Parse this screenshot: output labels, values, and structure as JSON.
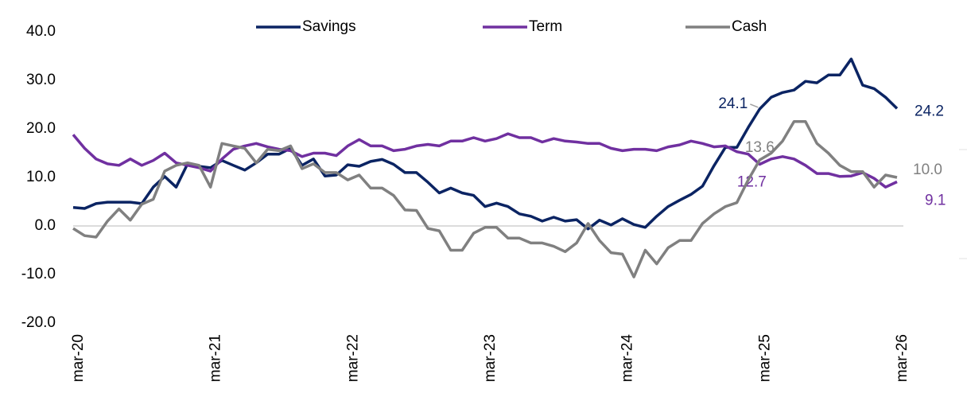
{
  "chart_data": {
    "type": "line",
    "categories": [
      "mar-20",
      null,
      null,
      null,
      null,
      null,
      null,
      null,
      null,
      null,
      null,
      null,
      "mar-21",
      null,
      null,
      null,
      null,
      null,
      null,
      null,
      null,
      null,
      null,
      null,
      "mar-22",
      null,
      null,
      null,
      null,
      null,
      null,
      null,
      null,
      null,
      null,
      null,
      "mar-23",
      null,
      null,
      null,
      null,
      null,
      null,
      null,
      null,
      null,
      null,
      null,
      "mar-24",
      null,
      null,
      null,
      null,
      null,
      null,
      null,
      null,
      null,
      null,
      null,
      "mar-25",
      null,
      null,
      null,
      null,
      null,
      null,
      null,
      null,
      null,
      null,
      null,
      "mar-26"
    ],
    "series": [
      {
        "name": "Savings",
        "color": "#0b2463",
        "values": [
          3.8,
          3.6,
          4.6,
          4.9,
          4.9,
          4.9,
          4.6,
          8.0,
          10.2,
          8.0,
          12.8,
          12.3,
          12.0,
          13.5,
          12.5,
          11.5,
          13.0,
          14.8,
          14.8,
          16.0,
          12.5,
          13.8,
          10.3,
          10.5,
          12.6,
          12.3,
          13.3,
          13.7,
          12.7,
          11.0,
          11.0,
          9.0,
          6.8,
          7.8,
          6.8,
          6.3,
          4.0,
          4.7,
          4.0,
          2.5,
          2.0,
          1.0,
          1.8,
          1.0,
          1.3,
          -0.6,
          1.2,
          0.2,
          1.5,
          0.3,
          -0.3,
          2.0,
          4.0,
          5.3,
          6.5,
          8.2,
          12.4,
          16.2,
          16.2,
          20.3,
          24.1,
          26.5,
          27.5,
          28.0,
          29.8,
          29.5,
          31.1,
          31.1,
          34.4,
          29.0,
          28.3,
          26.5,
          24.2
        ],
        "value_labels": [
          null,
          null,
          null,
          null,
          null,
          null,
          null,
          null,
          null,
          null,
          null,
          null,
          null,
          null,
          null,
          null,
          null,
          null,
          null,
          null,
          null,
          null,
          null,
          null,
          null,
          null,
          null,
          null,
          null,
          null,
          null,
          null,
          null,
          null,
          null,
          null,
          null,
          null,
          null,
          null,
          null,
          null,
          null,
          null,
          null,
          null,
          null,
          null,
          null,
          null,
          null,
          null,
          null,
          null,
          null,
          null,
          null,
          null,
          null,
          null,
          "24.1",
          null,
          null,
          null,
          null,
          null,
          null,
          null,
          null,
          null,
          null,
          null,
          "24.2"
        ]
      },
      {
        "name": "Term",
        "color": "#7030a0",
        "values": [
          18.8,
          16.0,
          13.8,
          12.8,
          12.5,
          13.8,
          12.5,
          13.5,
          15.0,
          13.0,
          12.5,
          12.0,
          11.3,
          13.8,
          15.8,
          16.5,
          17.0,
          16.3,
          15.8,
          15.5,
          14.3,
          15.0,
          15.0,
          14.5,
          16.5,
          17.8,
          16.5,
          16.5,
          15.5,
          15.8,
          16.5,
          16.8,
          16.5,
          17.5,
          17.5,
          18.2,
          17.5,
          18.0,
          19.0,
          18.2,
          18.2,
          17.3,
          18.0,
          17.5,
          17.3,
          17.0,
          17.0,
          16.0,
          15.5,
          15.8,
          15.8,
          15.5,
          16.3,
          16.7,
          17.5,
          17.0,
          16.3,
          16.5,
          15.3,
          14.8,
          12.7,
          13.8,
          14.3,
          13.8,
          12.5,
          10.8,
          10.8,
          10.2,
          10.3,
          11.0,
          9.8,
          8.0,
          9.1
        ],
        "value_labels": [
          null,
          null,
          null,
          null,
          null,
          null,
          null,
          null,
          null,
          null,
          null,
          null,
          null,
          null,
          null,
          null,
          null,
          null,
          null,
          null,
          null,
          null,
          null,
          null,
          null,
          null,
          null,
          null,
          null,
          null,
          null,
          null,
          null,
          null,
          null,
          null,
          null,
          null,
          null,
          null,
          null,
          null,
          null,
          null,
          null,
          null,
          null,
          null,
          null,
          null,
          null,
          null,
          null,
          null,
          null,
          null,
          null,
          null,
          null,
          null,
          "12.7",
          null,
          null,
          null,
          null,
          null,
          null,
          null,
          null,
          null,
          null,
          null,
          "9.1"
        ]
      },
      {
        "name": "Cash",
        "color": "#808080",
        "values": [
          -0.5,
          -2.0,
          -2.3,
          1.0,
          3.5,
          1.2,
          4.5,
          5.5,
          11.3,
          12.5,
          13.0,
          12.5,
          8.0,
          17.0,
          16.5,
          16.0,
          13.0,
          15.8,
          15.5,
          16.5,
          11.8,
          12.8,
          11.0,
          11.0,
          9.5,
          10.5,
          7.8,
          7.8,
          6.3,
          3.3,
          3.2,
          -0.5,
          -1.0,
          -5.0,
          -5.0,
          -1.5,
          -0.3,
          -0.3,
          -2.5,
          -2.5,
          -3.5,
          -3.5,
          -4.2,
          -5.3,
          -3.5,
          0.5,
          -3.0,
          -5.5,
          -5.8,
          -10.5,
          -5.0,
          -7.8,
          -4.5,
          -3.0,
          -3.0,
          0.5,
          2.5,
          4.0,
          4.8,
          9.5,
          13.6,
          15.0,
          17.5,
          21.5,
          21.5,
          17.0,
          15.0,
          12.5,
          11.2,
          11.2,
          8.0,
          10.5,
          10.0
        ],
        "value_labels": [
          null,
          null,
          null,
          null,
          null,
          null,
          null,
          null,
          null,
          null,
          null,
          null,
          null,
          null,
          null,
          null,
          null,
          null,
          null,
          null,
          null,
          null,
          null,
          null,
          null,
          null,
          null,
          null,
          null,
          null,
          null,
          null,
          null,
          null,
          null,
          null,
          null,
          null,
          null,
          null,
          null,
          null,
          null,
          null,
          null,
          null,
          null,
          null,
          null,
          null,
          null,
          null,
          null,
          null,
          null,
          null,
          null,
          null,
          null,
          null,
          "13.6",
          null,
          null,
          null,
          null,
          null,
          null,
          null,
          null,
          null,
          null,
          null,
          "10.0"
        ]
      }
    ],
    "ylim": [
      -20,
      40
    ],
    "yticks": [
      {
        "value": -20,
        "label": "-20.0"
      },
      {
        "value": -10,
        "label": "-10.0"
      },
      {
        "value": 0,
        "label": "0.0"
      },
      {
        "value": 10,
        "label": "10.0"
      },
      {
        "value": 20,
        "label": "20.0"
      },
      {
        "value": 30,
        "label": "30.0"
      },
      {
        "value": 40,
        "label": "40.0"
      }
    ],
    "legend": "top"
  }
}
